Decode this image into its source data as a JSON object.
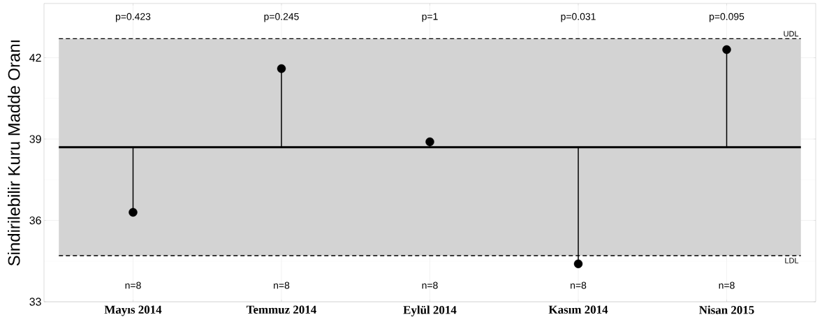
{
  "chart_data": {
    "type": "lollipop",
    "ylabel": "Sindirilebilir Kuru Madde Oranı",
    "categories": [
      "Mayıs 2014",
      "Temmuz 2014",
      "Eylül 2014",
      "Kasım  2014",
      "Nisan 2015"
    ],
    "values": [
      36.3,
      41.6,
      38.9,
      34.4,
      42.3
    ],
    "errors": [
      [
        36.3,
        38.7
      ],
      [
        38.7,
        41.6
      ],
      [
        38.7,
        38.9
      ],
      [
        34.4,
        38.7
      ],
      [
        38.7,
        42.3
      ]
    ],
    "color": "#000000",
    "marker": "circle",
    "ylim": [
      33,
      44
    ],
    "yticks": [
      33,
      36,
      39,
      42
    ],
    "grid": true,
    "ref_lines": [
      {
        "axis": "y",
        "value": 38.7,
        "color": "#000000"
      },
      {
        "axis": "y",
        "value": 42.7,
        "label": "UDL",
        "line_style": "dashed",
        "color": "#000000"
      },
      {
        "axis": "y",
        "value": 34.7,
        "label": "LDL",
        "line_style": "dashed",
        "color": "#000000"
      }
    ],
    "bands": [
      {
        "axis": "y",
        "from": 34.7,
        "to": 42.7,
        "color": "#d3d3d3"
      }
    ],
    "annotations": [
      "p=0.423",
      "p=0.245",
      "p=1",
      "p=0.031",
      "p=0.095",
      "n=8",
      "n=8",
      "n=8",
      "n=8",
      "n=8"
    ]
  }
}
